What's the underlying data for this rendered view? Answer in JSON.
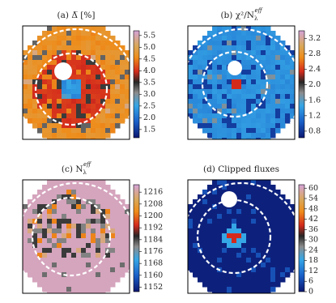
{
  "chart_data": [
    {
      "type": "image",
      "title": "(a) Δ̅ [%]",
      "clim": [
        1.15,
        5.7
      ],
      "cticks": [
        1.5,
        {
          "value": 2,
          "label": "2.0"
        },
        2.5,
        {
          "value": 3,
          "label": "3.0"
        },
        3.5,
        {
          "value": 4,
          "label": "4.0"
        },
        4.5,
        {
          "value": 5,
          "label": "5.0"
        },
        5.5
      ]
    },
    {
      "type": "image",
      "title": "(b) χ²/N",
      "title_sub": "λ",
      "title_sup": "eff",
      "clim": [
        0.63,
        3.4
      ],
      "cticks": [
        0.8,
        1.2,
        1.6,
        {
          "value": 2,
          "label": "2.0"
        },
        2.4,
        2.8,
        3.2
      ]
    },
    {
      "type": "image",
      "title": "(c) N",
      "title_sub": "λ",
      "title_sup": "eff",
      "clim": [
        1149,
        1221
      ],
      "cticks": [
        1152,
        1160,
        1168,
        1176,
        1184,
        1192,
        1200,
        1208,
        1216
      ]
    },
    {
      "type": "image",
      "title": "(d) Clipped fluxes",
      "clim": [
        0,
        62
      ],
      "cticks": [
        0,
        6,
        12,
        18,
        24,
        30,
        36,
        42,
        48,
        54,
        60
      ]
    }
  ]
}
